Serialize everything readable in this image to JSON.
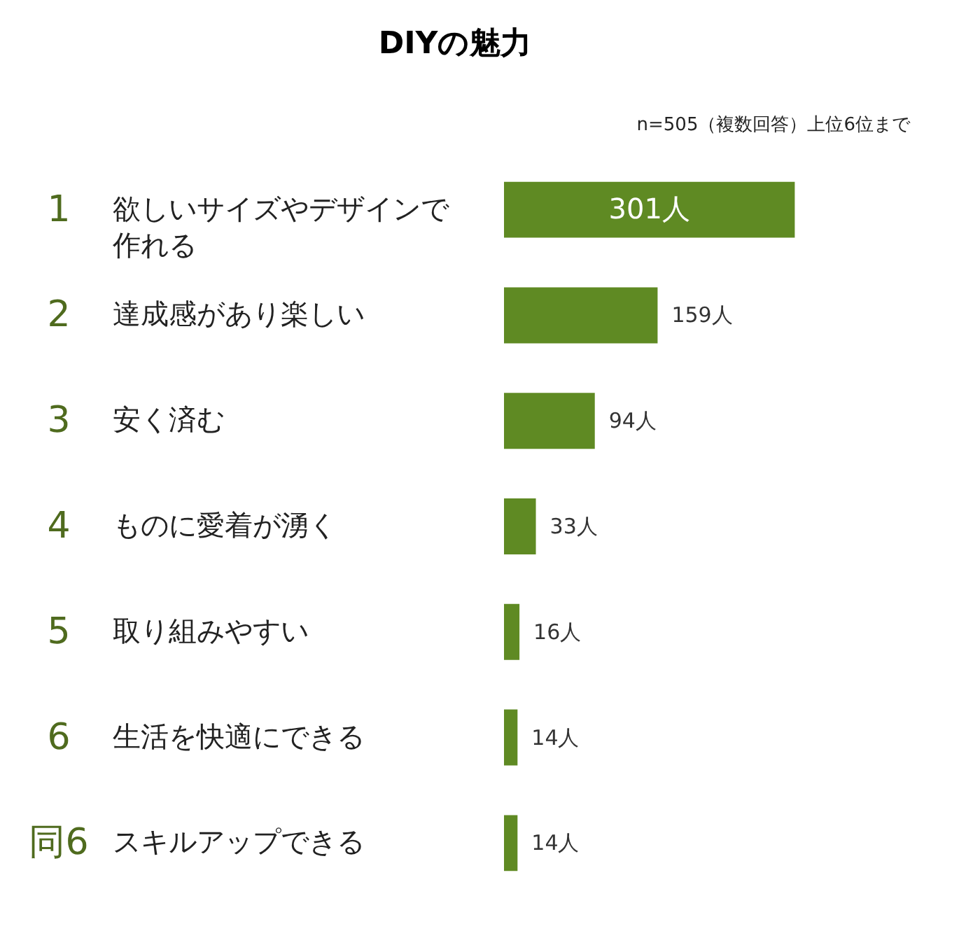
{
  "chart_data": {
    "type": "bar",
    "orientation": "horizontal",
    "title": "DIYの魅力",
    "subtitle": "n=505（複数回答）上位6位まで",
    "categories": [
      "欲しいサイズやデザインで作れる",
      "達成感があり楽しい",
      "安く済む",
      "ものに愛着が湧く",
      "取り組みやすい",
      "生活を快適にできる",
      "スキルアップできる"
    ],
    "values": [
      301,
      159,
      94,
      33,
      16,
      14,
      14
    ],
    "value_labels": [
      "301人",
      "159人",
      "94人",
      "33人",
      "16人",
      "14人",
      "14人"
    ],
    "color": "#5f8a23",
    "annotations": [
      "1",
      "2",
      "3",
      "4",
      "5",
      "6",
      "同6"
    ],
    "grid": false
  }
}
